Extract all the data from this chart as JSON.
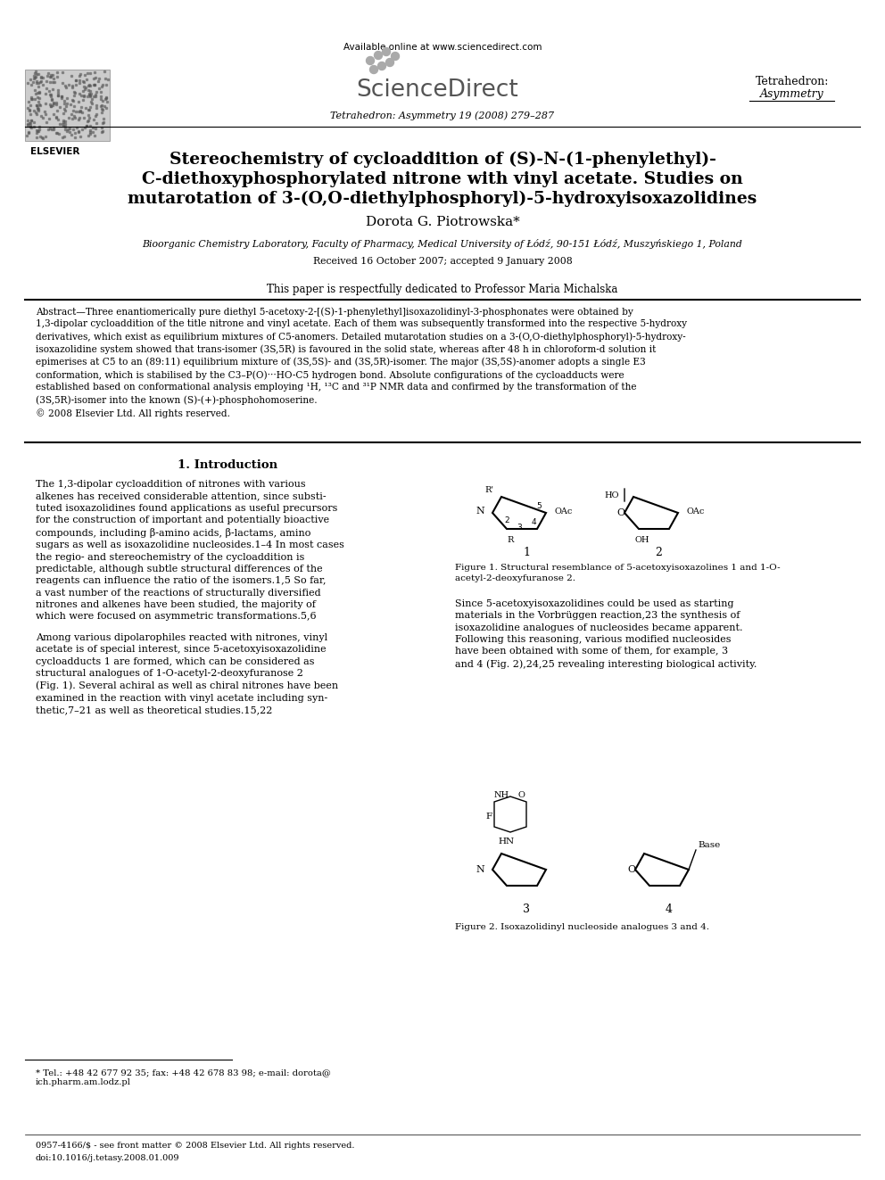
{
  "bg_color": "#ffffff",
  "available_online": "Available online at www.sciencedirect.com",
  "sciencedirect_text": "ScienceDirect",
  "journal_top_right_line1": "Tetrahedron:",
  "journal_top_right_line2": "Asymmetry",
  "journal_ref": "Tetrahedron: Asymmetry 19 (2008) 279–287",
  "elsevier_text": "ELSEVIER",
  "title_lines": [
    "Stereochemistry of cycloaddition of (S)-N-(1-phenylethyl)-",
    "C-diethoxyphosphorylated nitrone with vinyl acetate. Studies on",
    "mutarotation of 3-(O,O-diethylphosphoryl)-5-hydroxyisoxazolidines"
  ],
  "author": "Dorota G. Piotrowska*",
  "affiliation": "Bioorganic Chemistry Laboratory, Faculty of Pharmacy, Medical University of Łódź, 90-151 Łódź, Muszyńskiego 1, Poland",
  "received": "Received 16 October 2007; accepted 9 January 2008",
  "dedication": "This paper is respectfully dedicated to Professor Maria Michalska",
  "abstract_text": "Abstract—Three enantiomerically pure diethyl 5-acetoxy-2-[(S)-1-phenylethyl]isoxazolidinyl-3-phosphonates were obtained by\n1,3-dipolar cycloaddition of the title nitrone and vinyl acetate. Each of them was subsequently transformed into the respective 5-hydroxy\nderivatives, which exist as equilibrium mixtures of C5-anomers. Detailed mutarotation studies on a 3-(O,O-diethylphosphoryl)-5-hydroxy-\nisoxazolidine system showed that trans-isomer (3S,5R) is favoured in the solid state, whereas after 48 h in chloroform-d solution it\nepimerises at C5 to an (89:11) equilibrium mixture of (3S,5S)- and (3S,5R)-isomer. The major (3S,5S)-anomer adopts a single E3\nconformation, which is stabilised by the C3–P(O)···HO-C5 hydrogen bond. Absolute configurations of the cycloadducts were\nestablished based on conformational analysis employing ¹H, ¹³C and ³¹P NMR data and confirmed by the transformation of the\n(3S,5R)-isomer into the known (S)-(+)-phosphohomoserine.\n© 2008 Elsevier Ltd. All rights reserved.",
  "section1_title": "1. Introduction",
  "left_col_para1": "The 1,3-dipolar cycloaddition of nitrones with various\nalkenes has received considerable attention, since substi-\ntuted isoxazolidines found applications as useful precursors\nfor the construction of important and potentially bioactive\ncompounds, including β-amino acids, β-lactams, amino\nsugars as well as isoxazolidine nucleosides.1–4 In most cases\nthe regio- and stereochemistry of the cycloaddition is\npredictable, although subtle structural differences of the\nreagents can influence the ratio of the isomers.1,5 So far,\na vast number of the reactions of structurally diversified\nnitrones and alkenes have been studied, the majority of\nwhich were focused on asymmetric transformations.5,6",
  "left_col_para2": "Among various dipolarophiles reacted with nitrones, vinyl\nacetate is of special interest, since 5-acetoxyisoxazolidine\ncycloadducts 1 are formed, which can be considered as\nstructural analogues of 1-O-acetyl-2-deoxyfuranose 2\n(Fig. 1). Several achiral as well as chiral nitrones have been\nexamined in the reaction with vinyl acetate including syn-\nthetic,7–21 as well as theoretical studies.15,22",
  "fig1_caption": "Figure 1. Structural resemblance of 5-acetoxyisoxazolines 1 and 1-O-\nacetyl-2-deoxyfuranose 2.",
  "right_col_para1": "Since 5-acetoxyisoxazolidines could be used as starting\nmaterials in the Vorbrüggen reaction,23 the synthesis of\nisoxazolidine analogues of nucleosides became apparent.\nFollowing this reasoning, various modified nucleosides\nhave been obtained with some of them, for example, 3\nand 4 (Fig. 2),24,25 revealing interesting biological activity.",
  "fig2_caption": "Figure 2. Isoxazolidinyl nucleoside analogues 3 and 4.",
  "footnote": "* Tel.: +48 42 677 92 35; fax: +48 42 678 83 98; e-mail: dorota@\nich.pharm.am.lodz.pl",
  "footer_issn": "0957-4166/$ - see front matter © 2008 Elsevier Ltd. All rights reserved.",
  "footer_doi": "doi:10.1016/j.tetasy.2008.01.009"
}
